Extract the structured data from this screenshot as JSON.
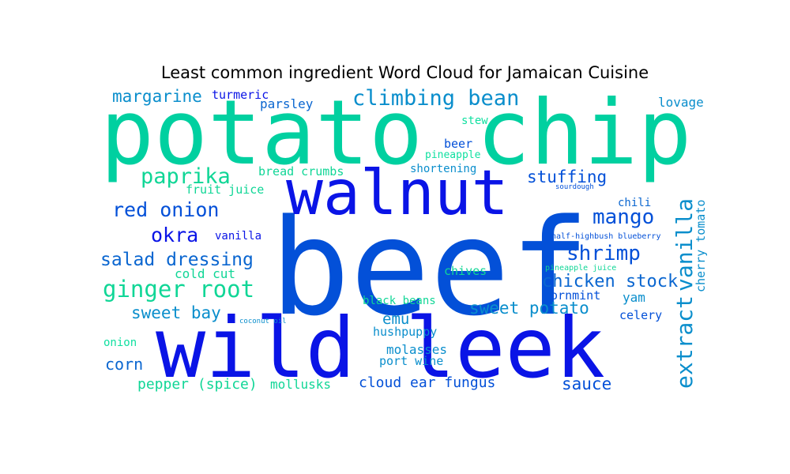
{
  "chart_data": {
    "type": "wordcloud",
    "title": "Least common ingredient Word Cloud for Jamaican Cuisine",
    "palette": [
      "#00d0a0",
      "#0a14e6",
      "#0350d8",
      "#0a8ecc",
      "#10d696"
    ],
    "words": [
      {
        "text": "potato chip",
        "color": "#00d0a0"
      },
      {
        "text": "beef",
        "color": "#0350d8"
      },
      {
        "text": "walnut",
        "color": "#0a14e6"
      },
      {
        "text": "wild leek",
        "color": "#0a14e6"
      },
      {
        "text": "climbing bean",
        "color": "#0a8ecc"
      },
      {
        "text": "margarine",
        "color": "#0a8ecc"
      },
      {
        "text": "turmeric",
        "color": "#0a14e6"
      },
      {
        "text": "parsley",
        "color": "#0a66d0"
      },
      {
        "text": "lovage",
        "color": "#0a8ecc"
      },
      {
        "text": "stew",
        "color": "#10e0a0"
      },
      {
        "text": "beer",
        "color": "#0350d8"
      },
      {
        "text": "pineapple",
        "color": "#10e0a0"
      },
      {
        "text": "paprika",
        "color": "#10d696"
      },
      {
        "text": "bread crumbs",
        "color": "#10d696"
      },
      {
        "text": "shortening",
        "color": "#0a8ecc"
      },
      {
        "text": "stuffing",
        "color": "#0350d8"
      },
      {
        "text": "fruit juice",
        "color": "#10d696"
      },
      {
        "text": "sourdough",
        "color": "#0350d8"
      },
      {
        "text": "red onion",
        "color": "#0350d8"
      },
      {
        "text": "mango",
        "color": "#0350d8"
      },
      {
        "text": "chili",
        "color": "#0a66d0"
      },
      {
        "text": "okra",
        "color": "#0a14e6"
      },
      {
        "text": "vanilla",
        "color": "#0a14e6"
      },
      {
        "text": "extract",
        "color": "#0a8ecc"
      },
      {
        "text": "cherry tomato",
        "color": "#0a8ecc"
      },
      {
        "text": "half-highbush blueberry",
        "color": "#0350d8"
      },
      {
        "text": "shrimp",
        "color": "#0350d8"
      },
      {
        "text": "salad dressing",
        "color": "#0a66d0"
      },
      {
        "text": "cold cut",
        "color": "#10d696"
      },
      {
        "text": "pineapple juice",
        "color": "#10d696"
      },
      {
        "text": "chives",
        "color": "#10d696"
      },
      {
        "text": "chicken stock",
        "color": "#0a66d0"
      },
      {
        "text": "ginger root",
        "color": "#10d696"
      },
      {
        "text": "vanilla",
        "color": "#0a8ecc"
      },
      {
        "text": "cornmint",
        "color": "#0350d8"
      },
      {
        "text": "yam",
        "color": "#0a8ecc"
      },
      {
        "text": "black beans",
        "color": "#10d696"
      },
      {
        "text": "sweet bay",
        "color": "#0a8ecc"
      },
      {
        "text": "sweet potato",
        "color": "#0a8ecc"
      },
      {
        "text": "emu",
        "color": "#0a8ecc"
      },
      {
        "text": "celery",
        "color": "#0350d8"
      },
      {
        "text": "coconut oil",
        "color": "#0a8ecc"
      },
      {
        "text": "hushpuppy",
        "color": "#0a8ecc"
      },
      {
        "text": "onion",
        "color": "#10e0a0"
      },
      {
        "text": "molasses",
        "color": "#0a8ecc"
      },
      {
        "text": "corn",
        "color": "#0a66d0"
      },
      {
        "text": "port wine",
        "color": "#0a8ecc"
      },
      {
        "text": "sauce",
        "color": "#0350d8"
      },
      {
        "text": "pepper (spice)",
        "color": "#10d696"
      },
      {
        "text": "mollusks",
        "color": "#10d696"
      },
      {
        "text": "cloud ear fungus",
        "color": "#0350d8"
      }
    ]
  }
}
